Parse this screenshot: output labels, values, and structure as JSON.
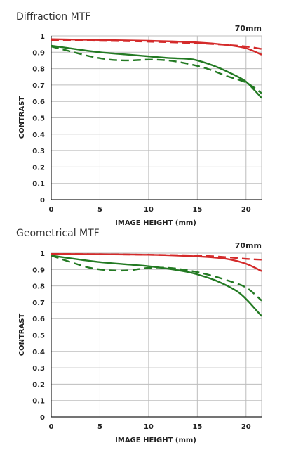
{
  "chart_data": [
    {
      "type": "line",
      "title": "Diffraction MTF",
      "focal_length": "70mm",
      "xlabel": "IMAGE HEIGHT (mm)",
      "ylabel": "CONTRAST",
      "xlim": [
        0,
        21.6
      ],
      "ylim": [
        0,
        1
      ],
      "xticks": [
        "0",
        "5",
        "10",
        "15",
        "20"
      ],
      "yticks": [
        "0",
        "0.1",
        "0.2",
        "0.3",
        "0.4",
        "0.5",
        "0.6",
        "0.7",
        "0.8",
        "0.9",
        "1"
      ],
      "grid": true,
      "series": [
        {
          "name": "red-sagittal",
          "color": "#d42a2a",
          "style": "solid",
          "x": [
            0,
            5,
            10,
            15,
            18,
            20,
            21.6
          ],
          "y": [
            0.98,
            0.975,
            0.97,
            0.96,
            0.945,
            0.925,
            0.885
          ]
        },
        {
          "name": "red-meridional",
          "color": "#d42a2a",
          "style": "dashed",
          "x": [
            0,
            5,
            10,
            15,
            18,
            20,
            21.6
          ],
          "y": [
            0.975,
            0.97,
            0.965,
            0.955,
            0.945,
            0.935,
            0.92
          ]
        },
        {
          "name": "green-sagittal",
          "color": "#237a23",
          "style": "solid",
          "x": [
            0,
            3,
            5,
            8,
            10,
            12,
            14,
            15,
            17,
            19,
            20,
            21,
            21.6
          ],
          "y": [
            0.94,
            0.915,
            0.9,
            0.885,
            0.875,
            0.865,
            0.86,
            0.85,
            0.81,
            0.755,
            0.72,
            0.66,
            0.62
          ]
        },
        {
          "name": "green-meridional",
          "color": "#237a23",
          "style": "dashed",
          "x": [
            0,
            2,
            4,
            6,
            8,
            10,
            12,
            14,
            16,
            18,
            20,
            21.6
          ],
          "y": [
            0.935,
            0.905,
            0.875,
            0.855,
            0.85,
            0.855,
            0.85,
            0.83,
            0.8,
            0.755,
            0.715,
            0.65
          ]
        }
      ]
    },
    {
      "type": "line",
      "title": "Geometrical MTF",
      "focal_length": "70mm",
      "xlabel": "IMAGE HEIGHT (mm)",
      "ylabel": "CONTRAST",
      "xlim": [
        0,
        21.6
      ],
      "ylim": [
        0,
        1
      ],
      "xticks": [
        "0",
        "5",
        "10",
        "15",
        "20"
      ],
      "yticks": [
        "0",
        "0.1",
        "0.2",
        "0.3",
        "0.4",
        "0.5",
        "0.6",
        "0.7",
        "0.8",
        "0.9",
        "1"
      ],
      "grid": true,
      "series": [
        {
          "name": "red-sagittal",
          "color": "#d42a2a",
          "style": "solid",
          "x": [
            0,
            5,
            10,
            15,
            18,
            20,
            21.6
          ],
          "y": [
            0.995,
            0.993,
            0.99,
            0.98,
            0.965,
            0.935,
            0.89
          ]
        },
        {
          "name": "red-meridional",
          "color": "#d42a2a",
          "style": "dashed",
          "x": [
            0,
            5,
            10,
            15,
            18,
            20,
            21.6
          ],
          "y": [
            0.995,
            0.993,
            0.99,
            0.985,
            0.975,
            0.965,
            0.96
          ]
        },
        {
          "name": "green-sagittal",
          "color": "#237a23",
          "style": "solid",
          "x": [
            0,
            3,
            5,
            8,
            10,
            12,
            14,
            15,
            17,
            19,
            20,
            21,
            21.6
          ],
          "y": [
            0.985,
            0.96,
            0.945,
            0.93,
            0.92,
            0.905,
            0.885,
            0.87,
            0.83,
            0.77,
            0.72,
            0.655,
            0.615
          ]
        },
        {
          "name": "green-meridional",
          "color": "#237a23",
          "style": "dashed",
          "x": [
            0,
            2,
            4,
            6,
            8,
            10,
            12,
            14,
            16,
            18,
            20,
            21.6
          ],
          "y": [
            0.985,
            0.945,
            0.91,
            0.895,
            0.895,
            0.91,
            0.91,
            0.895,
            0.87,
            0.835,
            0.79,
            0.71
          ]
        }
      ]
    }
  ]
}
